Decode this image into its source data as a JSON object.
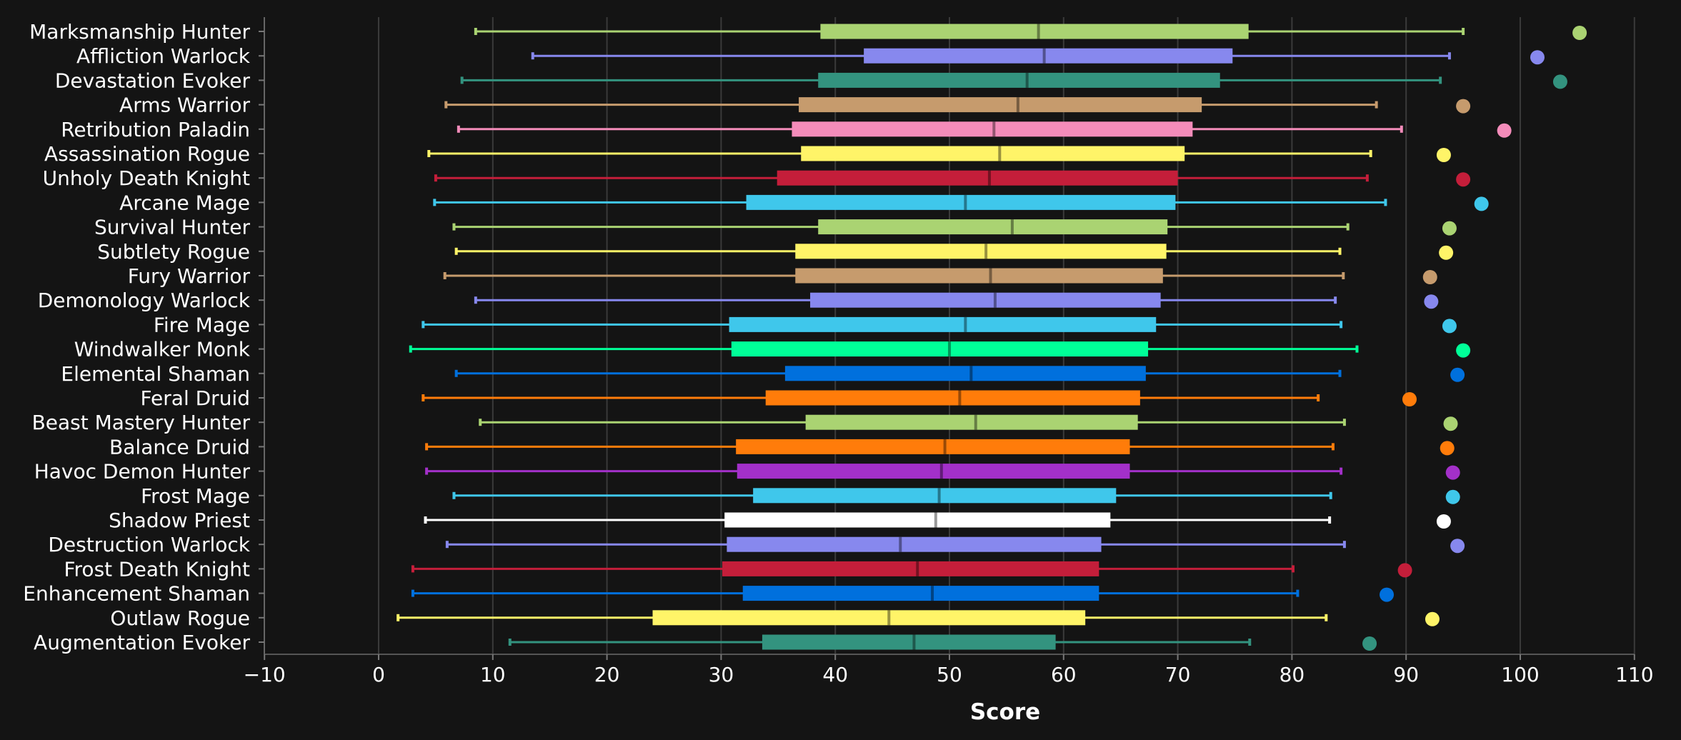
{
  "chart_data": {
    "type": "box",
    "xlabel": "Score",
    "xlim": [
      -10,
      112
    ],
    "xticks": [
      -10,
      0,
      10,
      20,
      30,
      40,
      50,
      60,
      70,
      80,
      90,
      100,
      110
    ],
    "grid": true,
    "series": [
      {
        "name": "Marksmanship Hunter",
        "color": "#aad372",
        "whisker_low": 8.5,
        "q1": 38.7,
        "median": 57.8,
        "q3": 76.2,
        "whisker_high": 95.0,
        "top": 105.2
      },
      {
        "name": "Affliction Warlock",
        "color": "#8788ee",
        "whisker_low": 13.5,
        "q1": 42.5,
        "median": 58.3,
        "q3": 74.8,
        "whisker_high": 93.8,
        "top": 101.5
      },
      {
        "name": "Devastation Evoker",
        "color": "#33937f",
        "whisker_low": 7.3,
        "q1": 38.5,
        "median": 56.8,
        "q3": 73.7,
        "whisker_high": 93.0,
        "top": 103.5
      },
      {
        "name": "Arms Warrior",
        "color": "#c69b6d",
        "whisker_low": 5.9,
        "q1": 36.8,
        "median": 56.0,
        "q3": 72.1,
        "whisker_high": 87.4,
        "top": 95.0
      },
      {
        "name": "Retribution Paladin",
        "color": "#f48cba",
        "whisker_low": 7.0,
        "q1": 36.2,
        "median": 53.9,
        "q3": 71.3,
        "whisker_high": 89.6,
        "top": 98.6
      },
      {
        "name": "Assassination Rogue",
        "color": "#fff468",
        "whisker_low": 4.4,
        "q1": 37.0,
        "median": 54.4,
        "q3": 70.6,
        "whisker_high": 86.9,
        "top": 93.3
      },
      {
        "name": "Unholy Death Knight",
        "color": "#c41e3a",
        "whisker_low": 5.0,
        "q1": 34.9,
        "median": 53.5,
        "q3": 70.0,
        "whisker_high": 86.6,
        "top": 95.0
      },
      {
        "name": "Arcane Mage",
        "color": "#3fc7eb",
        "whisker_low": 4.9,
        "q1": 32.2,
        "median": 51.4,
        "q3": 69.8,
        "whisker_high": 88.2,
        "top": 96.6
      },
      {
        "name": "Survival Hunter",
        "color": "#aad372",
        "whisker_low": 6.6,
        "q1": 38.5,
        "median": 55.5,
        "q3": 69.1,
        "whisker_high": 84.9,
        "top": 93.8
      },
      {
        "name": "Subtlety Rogue",
        "color": "#fff468",
        "whisker_low": 6.8,
        "q1": 36.5,
        "median": 53.2,
        "q3": 69.0,
        "whisker_high": 84.2,
        "top": 93.5
      },
      {
        "name": "Fury Warrior",
        "color": "#c69b6d",
        "whisker_low": 5.8,
        "q1": 36.5,
        "median": 53.6,
        "q3": 68.7,
        "whisker_high": 84.5,
        "top": 92.1
      },
      {
        "name": "Demonology Warlock",
        "color": "#8788ee",
        "whisker_low": 8.5,
        "q1": 37.8,
        "median": 54.0,
        "q3": 68.5,
        "whisker_high": 83.8,
        "top": 92.2
      },
      {
        "name": "Fire Mage",
        "color": "#3fc7eb",
        "whisker_low": 3.9,
        "q1": 30.7,
        "median": 51.4,
        "q3": 68.1,
        "whisker_high": 84.3,
        "top": 93.8
      },
      {
        "name": "Windwalker Monk",
        "color": "#00ff98",
        "whisker_low": 2.8,
        "q1": 30.9,
        "median": 50.0,
        "q3": 67.4,
        "whisker_high": 85.7,
        "top": 95.0
      },
      {
        "name": "Elemental Shaman",
        "color": "#0070dd",
        "whisker_low": 6.8,
        "q1": 35.6,
        "median": 51.9,
        "q3": 67.2,
        "whisker_high": 84.2,
        "top": 94.5
      },
      {
        "name": "Feral Druid",
        "color": "#ff7c0a",
        "whisker_low": 3.9,
        "q1": 33.9,
        "median": 50.9,
        "q3": 66.7,
        "whisker_high": 82.3,
        "top": 90.3
      },
      {
        "name": "Beast Mastery Hunter",
        "color": "#aad372",
        "whisker_low": 8.9,
        "q1": 37.4,
        "median": 52.3,
        "q3": 66.5,
        "whisker_high": 84.6,
        "top": 93.9
      },
      {
        "name": "Balance Druid",
        "color": "#ff7c0a",
        "whisker_low": 4.2,
        "q1": 31.3,
        "median": 49.6,
        "q3": 65.8,
        "whisker_high": 83.6,
        "top": 93.6
      },
      {
        "name": "Havoc Demon Hunter",
        "color": "#a330c9",
        "whisker_low": 4.2,
        "q1": 31.4,
        "median": 49.3,
        "q3": 65.8,
        "whisker_high": 84.3,
        "top": 94.1
      },
      {
        "name": "Frost Mage",
        "color": "#3fc7eb",
        "whisker_low": 6.6,
        "q1": 32.8,
        "median": 49.1,
        "q3": 64.6,
        "whisker_high": 83.4,
        "top": 94.1
      },
      {
        "name": "Shadow Priest",
        "color": "#ffffff",
        "whisker_low": 4.1,
        "q1": 30.3,
        "median": 48.8,
        "q3": 64.1,
        "whisker_high": 83.3,
        "top": 93.3
      },
      {
        "name": "Destruction Warlock",
        "color": "#8788ee",
        "whisker_low": 6.0,
        "q1": 30.5,
        "median": 45.7,
        "q3": 63.3,
        "whisker_high": 84.6,
        "top": 94.5
      },
      {
        "name": "Frost Death Knight",
        "color": "#c41e3a",
        "whisker_low": 3.0,
        "q1": 30.1,
        "median": 47.2,
        "q3": 63.1,
        "whisker_high": 80.1,
        "top": 89.9
      },
      {
        "name": "Enhancement Shaman",
        "color": "#0070dd",
        "whisker_low": 3.0,
        "q1": 31.9,
        "median": 48.5,
        "q3": 63.1,
        "whisker_high": 80.5,
        "top": 88.3
      },
      {
        "name": "Outlaw Rogue",
        "color": "#fff468",
        "whisker_low": 1.7,
        "q1": 24.0,
        "median": 44.7,
        "q3": 61.9,
        "whisker_high": 83.0,
        "top": 92.3
      },
      {
        "name": "Augmentation Evoker",
        "color": "#33937f",
        "whisker_low": 11.5,
        "q1": 33.6,
        "median": 46.9,
        "q3": 59.3,
        "whisker_high": 76.3,
        "top": 86.8
      }
    ]
  }
}
